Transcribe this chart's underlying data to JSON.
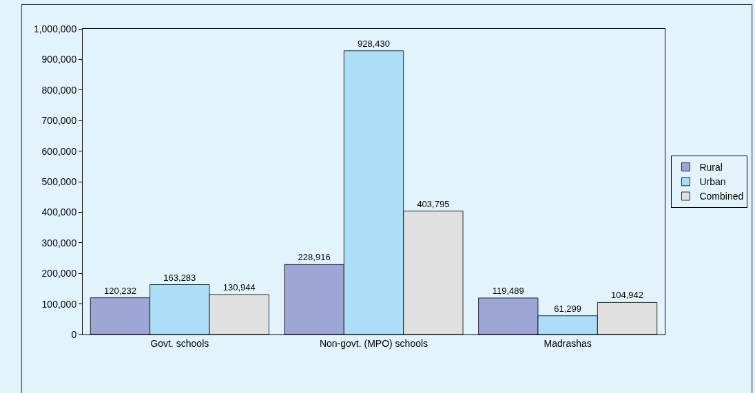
{
  "chart_data": {
    "type": "bar",
    "categories": [
      "Govt. schools",
      "Non-govt. (MPO) schools",
      "Madrashas"
    ],
    "series": [
      {
        "name": "Rural",
        "color": "#9ea6d6",
        "values": [
          120232,
          228916,
          119489
        ],
        "value_labels": [
          "120,232",
          "228,916",
          "119,489"
        ]
      },
      {
        "name": "Urban",
        "color": "#acdff7",
        "values": [
          163283,
          928430,
          61299
        ],
        "value_labels": [
          "163,283",
          "928,430",
          "61,299"
        ]
      },
      {
        "name": "Combined",
        "color": "#e0e0e0",
        "values": [
          130944,
          403795,
          104942
        ],
        "value_labels": [
          "130,944",
          "403,795",
          "104,942"
        ]
      }
    ],
    "ylim": [
      0,
      1000000
    ],
    "yticks": [
      0,
      {
        "value": 100000,
        "label": "100,000"
      },
      {
        "value": 200000,
        "label": "200,000"
      },
      {
        "value": 300000,
        "label": "300,000"
      },
      {
        "value": 400000,
        "label": "400,000"
      },
      {
        "value": 500000,
        "label": "500,000"
      },
      {
        "value": 600000,
        "label": "600,000"
      },
      {
        "value": 700000,
        "label": "700,000"
      },
      {
        "value": 800000,
        "label": "800,000"
      },
      {
        "value": 900000,
        "label": "900,000"
      },
      {
        "value": 1000000,
        "label": "1,000,000"
      }
    ],
    "grid": false,
    "legend": "right"
  }
}
